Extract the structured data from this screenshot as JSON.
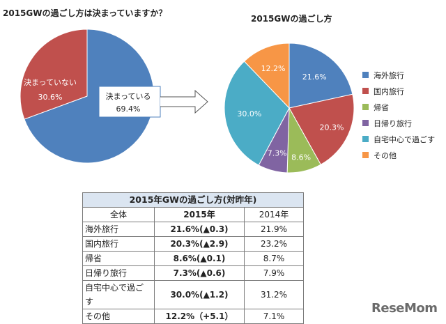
{
  "left_chart": {
    "title": "2015GWの過ごし方は決まっていますか？"
  },
  "right_chart": {
    "title": "2015GWの過ごし方"
  },
  "table": {
    "caption": "2015年GWの過ごし方(対昨年)",
    "header": [
      "全体",
      "2015年",
      "2014年"
    ],
    "rows": [
      {
        "category": "海外旅行",
        "v2015": "21.6%(▲0.3)",
        "v2014": "21.9%"
      },
      {
        "category": "国内旅行",
        "v2015": "20.3%(▲2.9)",
        "v2014": "23.2%"
      },
      {
        "category": "帰省",
        "v2015": "8.6%(▲0.1)",
        "v2014": "8.7%"
      },
      {
        "category": "日帰り旅行",
        "v2015": "7.3%(▲0.6)",
        "v2014": "7.9%"
      },
      {
        "category": "自宅中心で過ごす",
        "v2015": "30.0%(▲1.2)",
        "v2014": "31.2%"
      },
      {
        "category": "その他",
        "v2015": "12.2%（+5.1）",
        "v2014": "7.1%"
      }
    ]
  },
  "logo": "ReseMom",
  "chart_data": [
    {
      "type": "pie",
      "title": "2015GWの過ごし方は決まっていますか？",
      "slices": [
        {
          "label": "決まっている",
          "value": 69.4,
          "value_label": "69.4%",
          "color": "#4f81bd"
        },
        {
          "label": "決まっていない",
          "value": 30.6,
          "value_label": "30.6%",
          "color": "#c0504d"
        }
      ]
    },
    {
      "type": "pie",
      "title": "2015GWの過ごし方",
      "legend": "right",
      "slices": [
        {
          "label": "海外旅行",
          "value": 21.6,
          "value_label": "21.6%",
          "color": "#4f81bd"
        },
        {
          "label": "国内旅行",
          "value": 20.3,
          "value_label": "20.3%",
          "color": "#c0504d"
        },
        {
          "label": "帰省",
          "value": 8.6,
          "value_label": "8.6%",
          "color": "#9bbb59"
        },
        {
          "label": "日帰り旅行",
          "value": 7.3,
          "value_label": "7.3%",
          "color": "#8064a2"
        },
        {
          "label": "自宅中心で過ごす",
          "value": 30.0,
          "value_label": "30.0%",
          "color": "#4bacc6"
        },
        {
          "label": "その他",
          "value": 12.2,
          "value_label": "12.2%",
          "color": "#f79646"
        }
      ]
    }
  ]
}
